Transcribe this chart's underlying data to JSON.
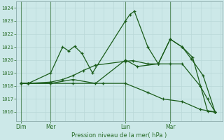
{
  "background_color": "#cce8e8",
  "grid_color_minor": "#b8d8d8",
  "grid_color_major": "#a0c8c8",
  "line_color": "#1a5c1a",
  "tick_color": "#2a6e2a",
  "title": "Pression niveau de la mer( hPa )",
  "ylabel_ticks": [
    1016,
    1017,
    1018,
    1019,
    1020,
    1021,
    1022,
    1023,
    1024
  ],
  "ylim": [
    1015.3,
    1024.5
  ],
  "day_labels": [
    "Dim",
    "Mer",
    "Lun",
    "Mar"
  ],
  "day_positions": [
    0,
    2,
    7,
    10
  ],
  "day_vlines": [
    0,
    2,
    7,
    10
  ],
  "xlim": [
    -0.3,
    13.5
  ],
  "series": [
    {
      "x": [
        0,
        0.5,
        2.0,
        2.8,
        3.2,
        3.6,
        4.1,
        4.8,
        7.0,
        7.3,
        7.6,
        8.5,
        9.2,
        10.0,
        10.8,
        11.4,
        12.2,
        13.0
      ],
      "y": [
        1018.2,
        1018.2,
        1019.0,
        1021.0,
        1020.7,
        1021.05,
        1020.5,
        1019.0,
        1023.0,
        1023.5,
        1023.75,
        1021.0,
        1019.7,
        1021.6,
        1021.0,
        1020.1,
        1018.8,
        1016.0
      ]
    },
    {
      "x": [
        0,
        0.5,
        2.0,
        2.8,
        3.5,
        4.2,
        5.0,
        7.0,
        7.5,
        8.5,
        9.2,
        10.0,
        10.8,
        11.5,
        12.5,
        13.0
      ],
      "y": [
        1018.2,
        1018.2,
        1018.3,
        1018.5,
        1018.8,
        1019.2,
        1019.6,
        1019.9,
        1019.95,
        1019.7,
        1019.7,
        1021.6,
        1021.0,
        1020.2,
        1016.05,
        1016.0
      ]
    },
    {
      "x": [
        0,
        0.5,
        2.0,
        3.5,
        5.0,
        7.0,
        7.8,
        9.2,
        10.0,
        10.8,
        12.0,
        12.5,
        13.0
      ],
      "y": [
        1018.2,
        1018.2,
        1018.2,
        1018.5,
        1018.2,
        1020.0,
        1019.5,
        1019.7,
        1019.7,
        1019.7,
        1018.0,
        1017.0,
        1016.0
      ]
    },
    {
      "x": [
        0,
        0.5,
        2.0,
        3.5,
        5.5,
        7.0,
        8.5,
        9.5,
        10.8,
        12.0,
        13.0
      ],
      "y": [
        1018.2,
        1018.2,
        1018.2,
        1018.2,
        1018.2,
        1018.2,
        1017.5,
        1017.0,
        1016.8,
        1016.2,
        1016.0
      ]
    }
  ]
}
